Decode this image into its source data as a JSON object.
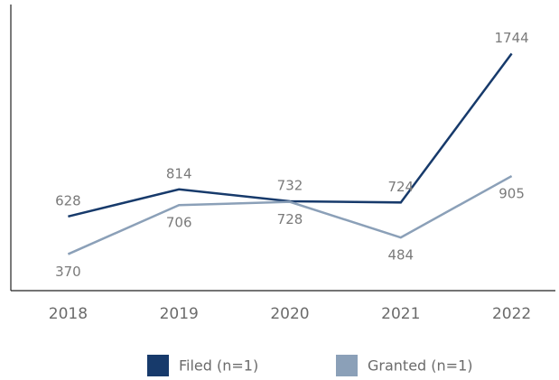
{
  "chart_data": {
    "type": "line",
    "categories": [
      "2018",
      "2019",
      "2020",
      "2021",
      "2022"
    ],
    "series": [
      {
        "name": "Filed (n=1)",
        "color": "#173a6b",
        "values": [
          628,
          814,
          732,
          724,
          1744
        ]
      },
      {
        "name": "Granted (n=1)",
        "color": "#8ba0b8",
        "values": [
          370,
          706,
          728,
          484,
          905
        ]
      }
    ],
    "ylim": [
      120,
      2080
    ]
  }
}
